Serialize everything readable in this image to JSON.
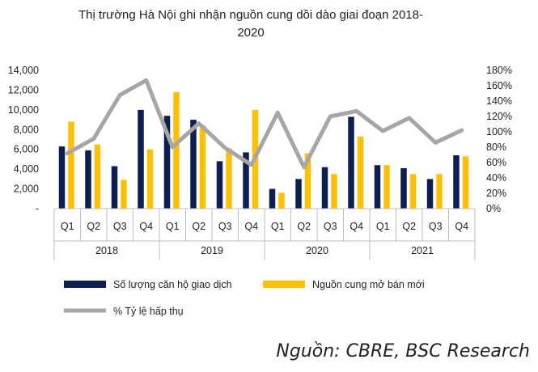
{
  "chart_data": {
    "type": "bar",
    "title": "Thị trường Hà Nội ghi nhận nguồn cung dồi dào giai đoạn 2018-2020",
    "title_lines": [
      "Thị trường Hà Nội ghi nhận nguồn cung dồi dào giai đoạn 2018-",
      "2020"
    ],
    "categories": [
      "Q1",
      "Q2",
      "Q3",
      "Q4",
      "Q1",
      "Q2",
      "Q3",
      "Q4",
      "Q1",
      "Q2",
      "Q3",
      "Q4",
      "Q1",
      "Q2",
      "Q3",
      "Q4"
    ],
    "groups": [
      "2018",
      "2019",
      "2020",
      "2021"
    ],
    "series": [
      {
        "name": "Số lượng căn hộ giao dịch",
        "type": "bar",
        "axis": "left",
        "color": "#0d1f4e",
        "values": [
          6300,
          5900,
          4300,
          10000,
          9400,
          9000,
          4800,
          5700,
          2000,
          3000,
          4200,
          9300,
          4400,
          4100,
          3000,
          5400
        ]
      },
      {
        "name": "Nguồn cung mở bán mới",
        "type": "bar",
        "axis": "left",
        "color": "#ffc000",
        "values": [
          8800,
          6500,
          2900,
          6000,
          11800,
          8400,
          6100,
          10000,
          1600,
          5600,
          3500,
          7300,
          4400,
          3500,
          3500,
          5300
        ]
      },
      {
        "name": "% Tỷ lệ hấp thụ",
        "type": "line",
        "axis": "right",
        "color": "#a6a6a6",
        "values": [
          72,
          91,
          148,
          167,
          80,
          111,
          79,
          57,
          125,
          54,
          120,
          127,
          101,
          118,
          86,
          102
        ]
      }
    ],
    "y_left": {
      "ylim": [
        0,
        14000
      ],
      "ticks": [
        "-",
        "2,000",
        "4,000",
        "6,000",
        "8,000",
        "10,000",
        "12,000",
        "14,000"
      ]
    },
    "y_right": {
      "ylim": [
        0,
        180
      ],
      "ticks": [
        "0%",
        "20%",
        "40%",
        "60%",
        "80%",
        "100%",
        "120%",
        "140%",
        "160%",
        "180%"
      ]
    },
    "legend_position": "bottom",
    "grid": false
  },
  "source_note": "Nguồn: CBRE, BSC Research"
}
